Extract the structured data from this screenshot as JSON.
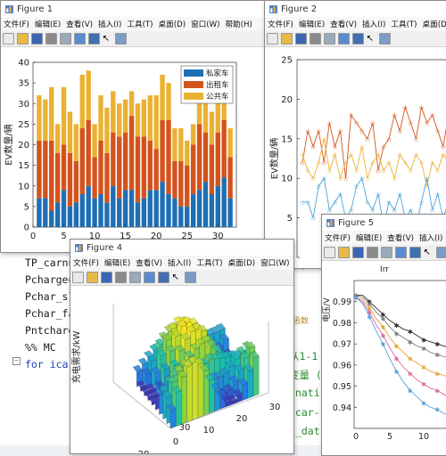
{
  "colors": {
    "private": "#1f6fb4",
    "taxi": "#d4531d",
    "bus": "#eab233"
  },
  "menu": [
    "文件(F)",
    "编辑(E)",
    "查看(V)",
    "插入(I)",
    "工具(T)",
    "桌面(D)",
    "窗口(W)",
    "帮助(H)"
  ],
  "windows": {
    "fig1": {
      "title": "Figure 1"
    },
    "fig2": {
      "title": "Figure 2"
    },
    "fig4": {
      "title": "Figure 4"
    },
    "fig5": {
      "title": "Figure 5"
    }
  },
  "editor": {
    "lines": [
      "TP_carnu",
      "Pcharge=",
      "Pchar_sl",
      "Pchar_fa",
      "Pntcharg",
      "%% MC",
      "for icar"
    ],
    "right_snippets": [
      "e(W,1",
      "从1-1",
      "变量 (",
      "inati",
      "icar-",
      "t_dat"
    ],
    "tab_label": "函数"
  },
  "chart_data": [
    {
      "type": "bar",
      "stacked": true,
      "window": "Figure 1",
      "ylabel": "EV数量/辆",
      "xlim": [
        0,
        33
      ],
      "ylim": [
        0,
        40
      ],
      "xticks": [
        0,
        5,
        10,
        15,
        20,
        25,
        30
      ],
      "yticks": [
        0,
        5,
        10,
        15,
        20,
        25,
        30,
        35,
        40
      ],
      "legend": "top-right",
      "x": [
        1,
        2,
        3,
        4,
        5,
        6,
        7,
        8,
        9,
        10,
        11,
        12,
        13,
        14,
        15,
        16,
        17,
        18,
        19,
        20,
        21,
        22,
        23,
        24,
        25,
        26,
        27,
        28,
        29,
        30,
        31,
        32
      ],
      "series": [
        {
          "name": "私家车",
          "color": "#1f6fb4",
          "values": [
            7,
            7,
            4,
            6,
            9,
            5,
            6,
            8,
            10,
            7,
            8,
            6,
            10,
            7,
            9,
            9,
            6,
            7,
            9,
            9,
            11,
            8,
            7,
            5,
            5,
            8,
            9,
            11,
            8,
            10,
            12,
            7
          ]
        },
        {
          "name": "出租车",
          "color": "#d4531d",
          "values": [
            14,
            14,
            17,
            12,
            11,
            13,
            10,
            16,
            16,
            10,
            13,
            12,
            13,
            15,
            14,
            18,
            16,
            15,
            12,
            10,
            15,
            18,
            9,
            11,
            10,
            12,
            16,
            12,
            12,
            13,
            14,
            10
          ]
        },
        {
          "name": "公共车",
          "color": "#eab233",
          "values": [
            11,
            10,
            13,
            7,
            14,
            10,
            9,
            13,
            12,
            8,
            11,
            11,
            10,
            8,
            8,
            6,
            8,
            9,
            11,
            13,
            11,
            9,
            8,
            8,
            6,
            5,
            7,
            8,
            8,
            11,
            8,
            7
          ]
        }
      ]
    },
    {
      "type": "line",
      "window": "Figure 2",
      "ylabel": "EV数量/辆",
      "ylim": [
        0,
        25
      ],
      "yticks": [
        0,
        5,
        10,
        15,
        20,
        25
      ],
      "series": [
        {
          "color": "#d4531d",
          "values": [
            12,
            16,
            14,
            16,
            12,
            17,
            14,
            16,
            10,
            18,
            17,
            16,
            15,
            17,
            11,
            14,
            15,
            18,
            16,
            19,
            17,
            15,
            19,
            17,
            18,
            16,
            14,
            18,
            20,
            16
          ]
        },
        {
          "color": "#eab233",
          "values": [
            13,
            11,
            10,
            12,
            15,
            11,
            13,
            10,
            12,
            13,
            11,
            14,
            10,
            12,
            13,
            11,
            12,
            10,
            13,
            12,
            11,
            13,
            12,
            9,
            12,
            11,
            13,
            12,
            10,
            14
          ]
        },
        {
          "color": "#4aa3d8",
          "values": [
            7,
            7,
            5,
            9,
            10,
            6,
            7,
            8,
            5,
            6,
            9,
            10,
            7,
            6,
            8,
            4,
            7,
            6,
            8,
            5,
            6,
            4,
            7,
            10,
            6,
            8,
            5,
            7,
            9,
            6
          ]
        }
      ]
    },
    {
      "type": "bar3d",
      "window": "Figure 4",
      "zlabel": "充电需求/kW",
      "xticks": [
        0,
        10,
        20,
        30
      ],
      "yticks": [
        20,
        30
      ]
    },
    {
      "type": "line",
      "window": "Figure 5",
      "title": "Irr",
      "ylabel": "电压/V",
      "ylim": [
        0.93,
        1.0
      ],
      "yticks": [
        0.94,
        0.95,
        0.96,
        0.97,
        0.98,
        0.99
      ],
      "xticks": [
        0,
        5,
        10,
        15
      ],
      "series": [
        {
          "color": "#2a2a2a",
          "values": [
            0.993,
            0.993,
            0.99,
            0.987,
            0.984,
            0.981,
            0.979,
            0.977,
            0.976,
            0.974,
            0.972,
            0.971,
            0.97,
            0.969,
            0.968,
            0.967
          ]
        },
        {
          "color": "#7a7a7a",
          "values": [
            0.993,
            0.992,
            0.989,
            0.985,
            0.982,
            0.978,
            0.975,
            0.973,
            0.971,
            0.969,
            0.968,
            0.966,
            0.965,
            0.964,
            0.963,
            0.962
          ]
        },
        {
          "color": "#e7a33a",
          "values": [
            0.992,
            0.991,
            0.987,
            0.982,
            0.978,
            0.973,
            0.969,
            0.966,
            0.963,
            0.961,
            0.959,
            0.957,
            0.956,
            0.955,
            0.954,
            0.953
          ]
        },
        {
          "color": "#d86aa0",
          "values": [
            0.992,
            0.99,
            0.985,
            0.979,
            0.974,
            0.968,
            0.963,
            0.959,
            0.956,
            0.953,
            0.951,
            0.949,
            0.948,
            0.946,
            0.945,
            0.944
          ]
        },
        {
          "color": "#5aa0d8",
          "values": [
            0.992,
            0.989,
            0.983,
            0.976,
            0.97,
            0.963,
            0.957,
            0.952,
            0.948,
            0.945,
            0.942,
            0.94,
            0.939,
            0.937,
            0.936,
            0.935
          ]
        }
      ]
    }
  ]
}
